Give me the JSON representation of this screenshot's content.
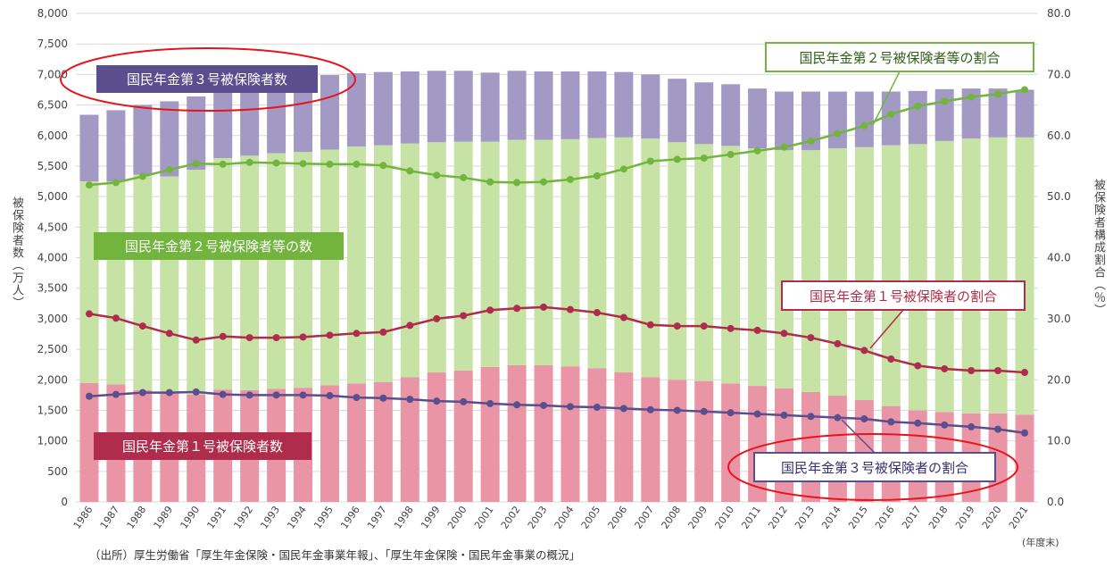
{
  "chart_data": {
    "type": "bar",
    "stacked": true,
    "categories": [
      "1986",
      "1987",
      "1988",
      "1989",
      "1990",
      "1991",
      "1992",
      "1993",
      "1994",
      "1995",
      "1996",
      "1997",
      "1998",
      "1999",
      "2000",
      "2001",
      "2002",
      "2003",
      "2004",
      "2005",
      "2006",
      "2007",
      "2008",
      "2009",
      "2010",
      "2011",
      "2012",
      "2013",
      "2014",
      "2015",
      "2016",
      "2017",
      "2018",
      "2019",
      "2020",
      "2021"
    ],
    "ylabel": "被保険者数（万人）",
    "y2label": "被保険者構成割合（％）",
    "ylim": [
      0,
      8000
    ],
    "y2lim": [
      0,
      80
    ],
    "yticks": [
      "0",
      "500",
      "1,000",
      "1,500",
      "2,000",
      "2,500",
      "3,000",
      "3,500",
      "4,000",
      "4,500",
      "5,000",
      "5,500",
      "6,000",
      "6,500",
      "7,000",
      "7,500",
      "8,000"
    ],
    "y2ticks": [
      "0.0",
      "10.0",
      "20.0",
      "30.0",
      "40.0",
      "50.0",
      "60.0",
      "70.0",
      "80.0"
    ],
    "x_suffix": "(年度末)",
    "grid": true,
    "series": [
      {
        "name": "国民年金第１号被保険者数",
        "kind": "bar",
        "axis": "left",
        "color": "#ea95a6",
        "values": [
          1950,
          1925,
          1830,
          1810,
          1760,
          1840,
          1830,
          1850,
          1870,
          1910,
          1940,
          1960,
          2040,
          2120,
          2150,
          2210,
          2240,
          2240,
          2220,
          2190,
          2120,
          2040,
          2000,
          1980,
          1940,
          1900,
          1860,
          1800,
          1740,
          1670,
          1570,
          1500,
          1470,
          1450,
          1450,
          1430
        ]
      },
      {
        "name": "国民年金第２号被保険者等の数",
        "kind": "bar",
        "axis": "left",
        "color": "#c6e3a5",
        "values": [
          3300,
          3320,
          3530,
          3520,
          3680,
          3790,
          3840,
          3860,
          3860,
          3860,
          3880,
          3880,
          3830,
          3770,
          3750,
          3690,
          3690,
          3690,
          3720,
          3770,
          3850,
          3910,
          3890,
          3880,
          3890,
          3890,
          3900,
          3960,
          4050,
          4140,
          4270,
          4360,
          4440,
          4500,
          4520,
          4540
        ]
      },
      {
        "name": "国民年金第３号被保険者数",
        "kind": "bar",
        "axis": "left",
        "color": "#a29ac4",
        "values": [
          1090,
          1170,
          1140,
          1230,
          1200,
          1190,
          1190,
          1200,
          1210,
          1220,
          1200,
          1200,
          1180,
          1170,
          1160,
          1130,
          1130,
          1120,
          1110,
          1090,
          1070,
          1050,
          1040,
          1010,
          1010,
          980,
          960,
          960,
          930,
          910,
          880,
          870,
          850,
          820,
          800,
          780
        ]
      },
      {
        "name": "国民年金第２号被保険者等の割合",
        "kind": "line",
        "axis": "right",
        "color": "#72b43e",
        "values": [
          51.9,
          52.3,
          53.3,
          54.4,
          55.4,
          55.3,
          55.6,
          55.5,
          55.4,
          55.3,
          55.3,
          55.1,
          54.2,
          53.5,
          53.1,
          52.4,
          52.3,
          52.4,
          52.8,
          53.4,
          54.5,
          55.8,
          56.1,
          56.3,
          56.9,
          57.5,
          58.1,
          59.1,
          60.3,
          61.6,
          63.5,
          64.8,
          65.6,
          66.3,
          66.8,
          67.5
        ]
      },
      {
        "name": "国民年金第１号被保険者の割合",
        "kind": "line",
        "axis": "right",
        "color": "#b02c4c",
        "values": [
          30.8,
          30.1,
          28.8,
          27.6,
          26.5,
          27.1,
          26.9,
          26.9,
          27.0,
          27.3,
          27.6,
          27.8,
          28.9,
          30.0,
          30.5,
          31.4,
          31.7,
          31.9,
          31.5,
          31.0,
          30.2,
          29.0,
          28.8,
          28.8,
          28.4,
          28.1,
          27.6,
          26.9,
          25.9,
          24.8,
          23.4,
          22.3,
          21.8,
          21.5,
          21.5,
          21.2
        ]
      },
      {
        "name": "国民年金第３号被保険者の割合",
        "kind": "line",
        "axis": "right",
        "color": "#5a4e8e",
        "values": [
          17.3,
          17.6,
          17.9,
          17.9,
          18.0,
          17.6,
          17.5,
          17.5,
          17.5,
          17.4,
          17.1,
          17.0,
          16.8,
          16.5,
          16.4,
          16.1,
          15.9,
          15.8,
          15.6,
          15.5,
          15.3,
          15.1,
          15.0,
          14.8,
          14.6,
          14.4,
          14.2,
          14.0,
          13.8,
          13.6,
          13.1,
          12.9,
          12.6,
          12.3,
          11.9,
          11.3
        ]
      }
    ]
  },
  "labels": {
    "first_count": "国民年金第１号被保険者数",
    "second_count": "国民年金第２号被保険者等の数",
    "third_count": "国民年金第３号被保険者数",
    "second_share": "国民年金第２号被保険者等の割合",
    "first_share": "国民年金第１号被保険者の割合",
    "third_share": "国民年金第３号被保険者の割合"
  },
  "source_note": "（出所）厚生労働省「厚生年金保険・国民年金事業年報」、「厚生年金保険・国民年金事業の概況」",
  "highlight_color": "#e8141c"
}
